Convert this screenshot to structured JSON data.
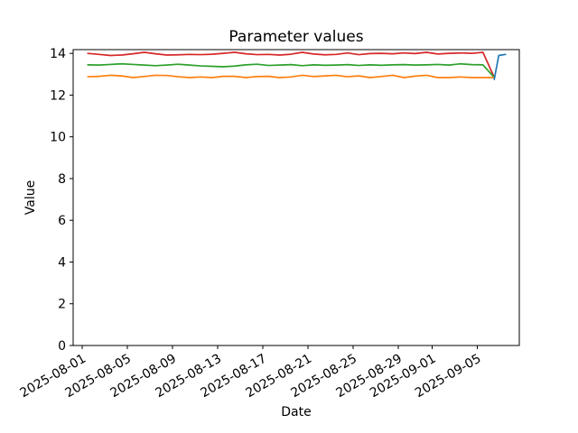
{
  "chart_data": {
    "type": "line",
    "title": "Parameter values",
    "xlabel": "Date",
    "ylabel": "Value",
    "grid": false,
    "legend": "none",
    "background_color": "#ffffff",
    "spine_color": "#000000",
    "x_base_date": "2025-08-01",
    "x_tick_labels": [
      "2025-08-01",
      "2025-08-05",
      "2025-08-09",
      "2025-08-13",
      "2025-08-17",
      "2025-08-21",
      "2025-08-25",
      "2025-08-29",
      "2025-09-01",
      "2025-09-05"
    ],
    "x_tick_day_offsets": [
      0,
      4,
      8,
      12,
      16,
      20,
      24,
      28,
      31,
      35
    ],
    "x_tick_rotation_deg": 30,
    "y_ticks": [
      0,
      2,
      4,
      6,
      8,
      10,
      12,
      14
    ],
    "xlim_days": [
      -0.8,
      38.72
    ],
    "ylim": [
      0,
      14.18
    ],
    "series": [
      {
        "name": "red",
        "color": "#d62728",
        "x_start": 0.5,
        "x_step": 1,
        "values": [
          14.0,
          13.95,
          13.9,
          13.92,
          13.98,
          14.05,
          13.98,
          13.92,
          13.93,
          13.95,
          13.94,
          13.96,
          14.0,
          14.05,
          13.98,
          13.94,
          13.95,
          13.92,
          13.96,
          14.05,
          13.97,
          13.93,
          13.95,
          14.02,
          13.94,
          13.99,
          14.0,
          13.98,
          14.02,
          13.99,
          14.05,
          13.97,
          14.0,
          14.02,
          14.0,
          14.05,
          12.85
        ]
      },
      {
        "name": "green",
        "color": "#2ca02c",
        "x_start": 0.5,
        "x_step": 1,
        "values": [
          13.45,
          13.44,
          13.47,
          13.5,
          13.47,
          13.44,
          13.41,
          13.44,
          13.48,
          13.44,
          13.4,
          13.38,
          13.36,
          13.39,
          13.45,
          13.48,
          13.42,
          13.44,
          13.46,
          13.41,
          13.45,
          13.43,
          13.44,
          13.46,
          13.42,
          13.45,
          13.43,
          13.45,
          13.46,
          13.44,
          13.45,
          13.47,
          13.44,
          13.5,
          13.46,
          13.45,
          12.85
        ]
      },
      {
        "name": "orange",
        "color": "#ff7f0e",
        "x_start": 0.5,
        "x_step": 1,
        "values": [
          12.88,
          12.9,
          12.95,
          12.92,
          12.84,
          12.89,
          12.95,
          12.94,
          12.88,
          12.84,
          12.87,
          12.84,
          12.9,
          12.9,
          12.84,
          12.89,
          12.9,
          12.84,
          12.87,
          12.95,
          12.89,
          12.92,
          12.95,
          12.88,
          12.92,
          12.84,
          12.89,
          12.95,
          12.84,
          12.91,
          12.95,
          12.84,
          12.84,
          12.87,
          12.84,
          12.84,
          12.84
        ]
      },
      {
        "name": "blue",
        "color": "#1f77b4",
        "points": [
          [
            36.5,
            12.75
          ],
          [
            36.9,
            13.9
          ],
          [
            37.5,
            13.95
          ]
        ]
      }
    ]
  }
}
